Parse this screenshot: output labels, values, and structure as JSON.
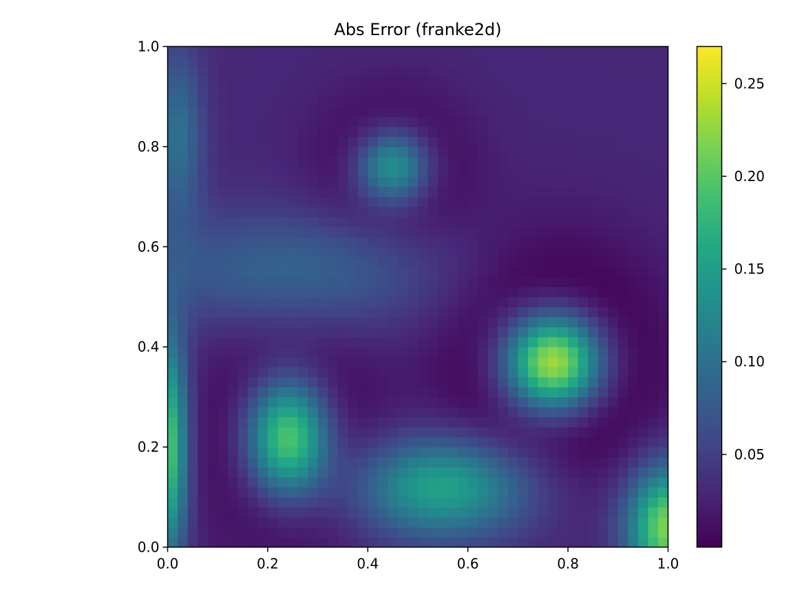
{
  "chart_data": {
    "type": "heatmap",
    "title": "Abs Error (franke2d)",
    "xlabel": "",
    "ylabel": "",
    "xlim": [
      0.0,
      1.0
    ],
    "ylim": [
      0.0,
      1.0
    ],
    "grid": false,
    "colormap": "viridis",
    "color_range": [
      0.0,
      0.27
    ],
    "resolution": [
      50,
      50
    ],
    "x_ticks": [
      "0.0",
      "0.2",
      "0.4",
      "0.6",
      "0.8",
      "1.0"
    ],
    "y_ticks": [
      "0.0",
      "0.2",
      "0.4",
      "0.6",
      "0.8",
      "1.0"
    ],
    "colorbar_ticks": [
      "0.05",
      "0.10",
      "0.15",
      "0.20",
      "0.25"
    ],
    "peaks": [
      {
        "x": 0.77,
        "y": 0.37,
        "value": 0.27
      },
      {
        "x": 0.24,
        "y": 0.22,
        "value": 0.22
      },
      {
        "x": 0.45,
        "y": 0.76,
        "value": 0.15
      },
      {
        "x": 1.0,
        "y": 0.05,
        "value": 0.2
      },
      {
        "x": 0.0,
        "y": 0.2,
        "value": 0.18
      }
    ]
  }
}
